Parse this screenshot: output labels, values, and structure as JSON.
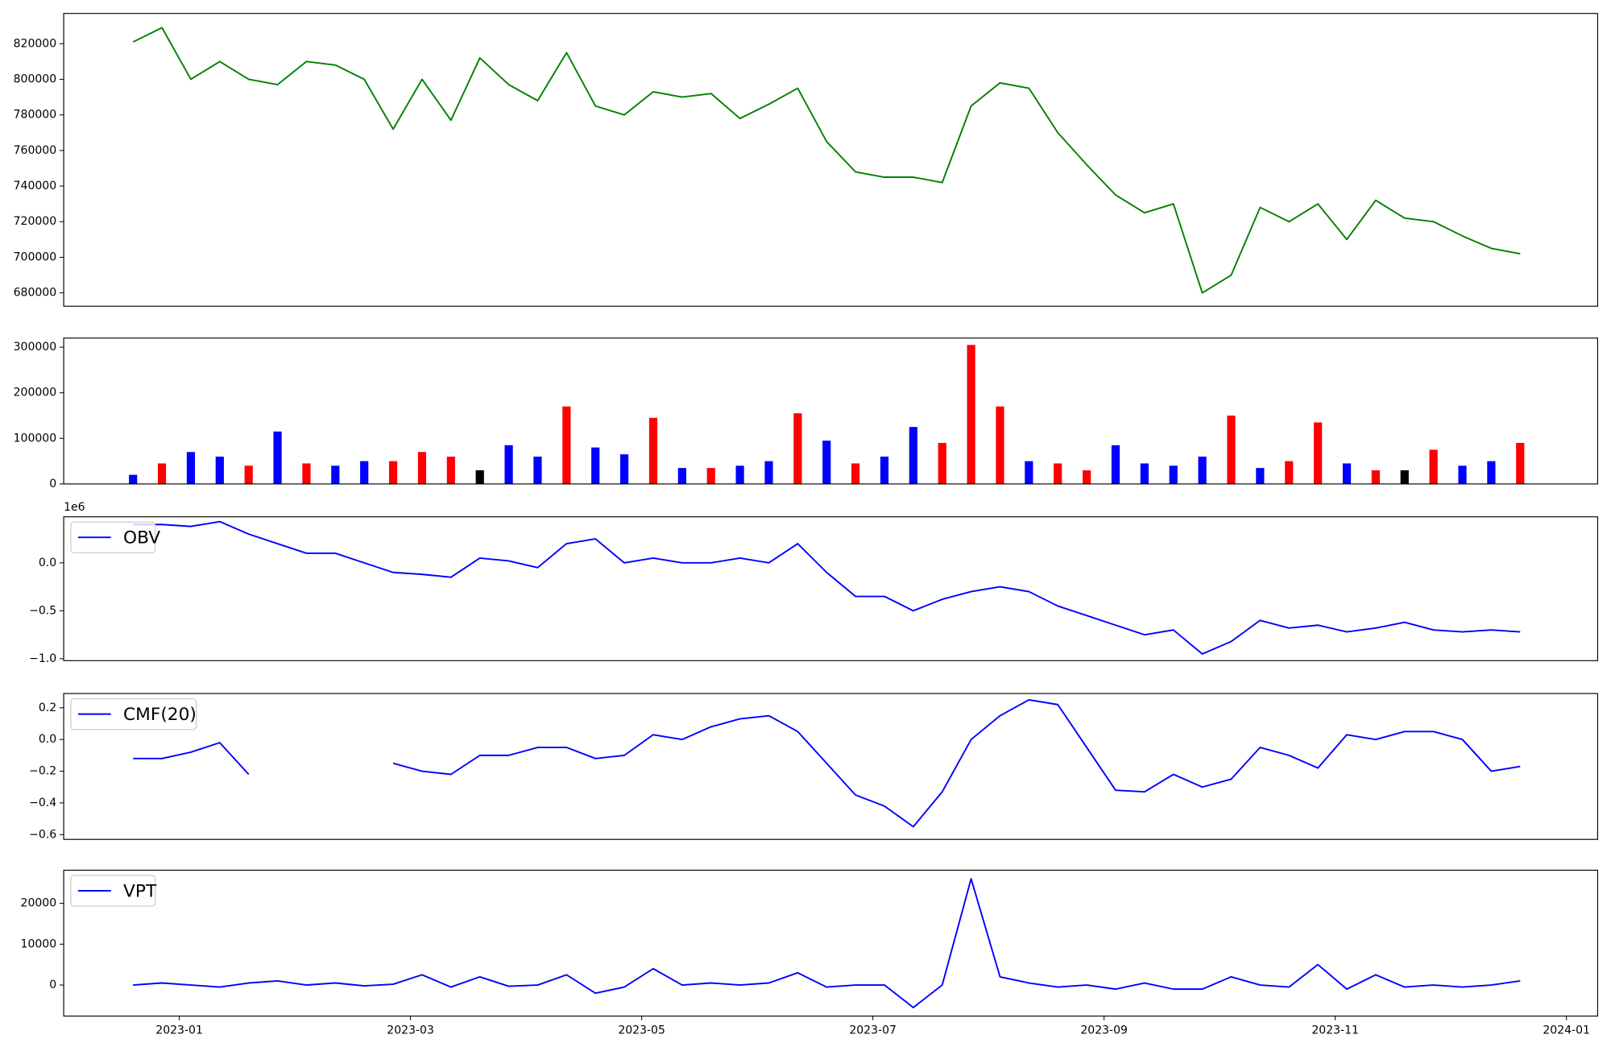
{
  "chart_data": [
    {
      "type": "line",
      "color": "green",
      "x": [
        0.6,
        0.85,
        1.1,
        1.35,
        1.6,
        1.85,
        2.1,
        2.35,
        2.6,
        2.85,
        3.1,
        3.35,
        3.6,
        3.85,
        4.1,
        4.35,
        4.6,
        4.85,
        5.1,
        5.35,
        5.6,
        5.85,
        6.1,
        6.35,
        6.6,
        6.85,
        7.1,
        7.35,
        7.6,
        7.85,
        8.1,
        8.35,
        8.6,
        8.85,
        9.1,
        9.35,
        9.6,
        9.85,
        10.1,
        10.35,
        10.6,
        10.85,
        11.1,
        11.35,
        11.6,
        11.85,
        12.1,
        12.35,
        12.6
      ],
      "values": [
        821000,
        829000,
        800000,
        810000,
        800000,
        797000,
        810000,
        808000,
        800000,
        772000,
        800000,
        777000,
        812000,
        797000,
        788000,
        815000,
        785000,
        780000,
        793000,
        790000,
        792000,
        778000,
        786000,
        795000,
        765000,
        748000,
        745000,
        745000,
        742000,
        785000,
        798000,
        795000,
        770000,
        752000,
        735000,
        725000,
        730000,
        680000,
        690000,
        728000,
        720000,
        730000,
        710000,
        732000,
        722000,
        720000,
        712000,
        705000,
        702000
      ],
      "xlim": [
        0,
        13.27
      ],
      "ylim": [
        672500,
        837000
      ],
      "yticks": [
        680000,
        700000,
        720000,
        740000,
        760000,
        780000,
        800000,
        820000
      ]
    },
    {
      "type": "bar",
      "x": [
        0.6,
        0.85,
        1.1,
        1.35,
        1.6,
        1.85,
        2.1,
        2.35,
        2.6,
        2.85,
        3.1,
        3.35,
        3.6,
        3.85,
        4.1,
        4.35,
        4.6,
        4.85,
        5.1,
        5.35,
        5.6,
        5.85,
        6.1,
        6.35,
        6.6,
        6.85,
        7.1,
        7.35,
        7.6,
        7.85,
        8.1,
        8.35,
        8.6,
        8.85,
        9.1,
        9.35,
        9.6,
        9.85,
        10.1,
        10.35,
        10.6,
        10.85,
        11.1,
        11.35,
        11.6,
        11.85,
        12.1,
        12.35,
        12.6
      ],
      "values": [
        20000,
        45000,
        70000,
        60000,
        40000,
        115000,
        45000,
        40000,
        50000,
        50000,
        70000,
        60000,
        30000,
        85000,
        60000,
        170000,
        80000,
        65000,
        145000,
        35000,
        35000,
        40000,
        50000,
        155000,
        95000,
        45000,
        60000,
        125000,
        90000,
        305000,
        170000,
        50000,
        45000,
        30000,
        85000,
        45000,
        40000,
        60000,
        150000,
        35000,
        50000,
        135000,
        45000,
        30000,
        30000,
        75000,
        40000,
        50000,
        90000
      ],
      "colors": [
        "blue",
        "red",
        "blue",
        "blue",
        "red",
        "blue",
        "red",
        "blue",
        "blue",
        "red",
        "red",
        "red",
        "black",
        "blue",
        "blue",
        "red",
        "blue",
        "blue",
        "red",
        "blue",
        "red",
        "blue",
        "blue",
        "red",
        "blue",
        "red",
        "blue",
        "blue",
        "red",
        "red",
        "red",
        "blue",
        "red",
        "red",
        "blue",
        "blue",
        "blue",
        "blue",
        "red",
        "blue",
        "red",
        "red",
        "blue",
        "red",
        "black",
        "red",
        "blue",
        "blue",
        "red"
      ],
      "xlim": [
        0,
        13.27
      ],
      "ylim": [
        0,
        320000
      ],
      "yticks": [
        0,
        100000,
        200000,
        300000
      ]
    },
    {
      "type": "line",
      "legend": "upper left",
      "offset_label": "1e6",
      "x": [
        0.6,
        0.85,
        1.1,
        1.35,
        1.6,
        1.85,
        2.1,
        2.35,
        2.6,
        2.85,
        3.1,
        3.35,
        3.6,
        3.85,
        4.1,
        4.35,
        4.6,
        4.85,
        5.1,
        5.35,
        5.6,
        5.85,
        6.1,
        6.35,
        6.6,
        6.85,
        7.1,
        7.35,
        7.6,
        7.85,
        8.1,
        8.35,
        8.6,
        8.85,
        9.1,
        9.35,
        9.6,
        9.85,
        10.1,
        10.35,
        10.6,
        10.85,
        11.1,
        11.35,
        11.6,
        11.85,
        12.1,
        12.35,
        12.6
      ],
      "series": [
        {
          "name": "OBV",
          "color": "blue",
          "values": [
            0.4,
            0.4,
            0.38,
            0.43,
            0.3,
            0.2,
            0.1,
            0.1,
            0.0,
            -0.1,
            -0.12,
            -0.15,
            0.05,
            0.02,
            -0.05,
            0.2,
            0.25,
            0.0,
            0.05,
            0.0,
            0.0,
            0.05,
            0.0,
            0.2,
            -0.1,
            -0.35,
            -0.35,
            -0.5,
            -0.38,
            -0.3,
            -0.25,
            -0.3,
            -0.45,
            -0.55,
            -0.65,
            -0.75,
            -0.7,
            -0.95,
            -0.82,
            -0.6,
            -0.68,
            -0.65,
            -0.72,
            -0.68,
            -0.62,
            -0.7,
            -0.72,
            -0.7,
            -0.72
          ]
        }
      ],
      "xlim": [
        0,
        13.27
      ],
      "ylim": [
        -1.02,
        0.48
      ],
      "yticks": [
        {
          "value": -1,
          "label": "−1.0"
        },
        {
          "value": -0.5,
          "label": "−0.5"
        },
        {
          "value": 0,
          "label": "0.0"
        }
      ]
    },
    {
      "type": "line",
      "legend": "upper left",
      "x": [
        0.6,
        0.85,
        1.1,
        1.35,
        1.6,
        1.85,
        2.1,
        2.35,
        2.6,
        2.85,
        3.1,
        3.35,
        3.6,
        3.85,
        4.1,
        4.35,
        4.6,
        4.85,
        5.1,
        5.35,
        5.6,
        5.85,
        6.1,
        6.35,
        6.6,
        6.85,
        7.1,
        7.35,
        7.6,
        7.85,
        8.1,
        8.35,
        8.6,
        8.85,
        9.1,
        9.35,
        9.6,
        9.85,
        10.1,
        10.35,
        10.6,
        10.85,
        11.1,
        11.35,
        11.6,
        11.85,
        12.1,
        12.35,
        12.6
      ],
      "series": [
        {
          "name": "CMF(20)",
          "color": "blue",
          "values": [
            -0.12,
            -0.12,
            -0.08,
            -0.02,
            -0.22,
            null,
            null,
            null,
            null,
            -0.15,
            -0.2,
            -0.22,
            -0.1,
            -0.1,
            -0.05,
            -0.05,
            -0.12,
            -0.1,
            0.03,
            0.0,
            0.08,
            0.13,
            0.15,
            0.05,
            -0.15,
            -0.35,
            -0.42,
            -0.55,
            -0.33,
            0.0,
            0.15,
            0.25,
            0.22,
            -0.05,
            -0.32,
            -0.33,
            -0.22,
            -0.3,
            -0.25,
            -0.05,
            -0.1,
            -0.18,
            0.03,
            0.0,
            0.05,
            0.05,
            0.0,
            -0.2,
            -0.17
          ]
        }
      ],
      "xlim": [
        0,
        13.27
      ],
      "ylim": [
        -0.63,
        0.29
      ],
      "yticks": [
        {
          "value": -0.6,
          "label": "−0.6"
        },
        {
          "value": -0.4,
          "label": "−0.4"
        },
        {
          "value": -0.2,
          "label": "−0.2"
        },
        {
          "value": 0,
          "label": "0.0"
        },
        0.2
      ]
    },
    {
      "type": "line",
      "legend": "upper left",
      "x": [
        0.6,
        0.85,
        1.1,
        1.35,
        1.6,
        1.85,
        2.1,
        2.35,
        2.6,
        2.85,
        3.1,
        3.35,
        3.6,
        3.85,
        4.1,
        4.35,
        4.6,
        4.85,
        5.1,
        5.35,
        5.6,
        5.85,
        6.1,
        6.35,
        6.6,
        6.85,
        7.1,
        7.35,
        7.6,
        7.85,
        8.1,
        8.35,
        8.6,
        8.85,
        9.1,
        9.35,
        9.6,
        9.85,
        10.1,
        10.35,
        10.6,
        10.85,
        11.1,
        11.35,
        11.6,
        11.85,
        12.1,
        12.35,
        12.6
      ],
      "series": [
        {
          "name": "VPT",
          "color": "blue",
          "values": [
            0,
            500,
            0,
            -500,
            500,
            1000,
            0,
            500,
            -200,
            200,
            2500,
            -500,
            2000,
            -300,
            0,
            2500,
            -2000,
            -500,
            4000,
            0,
            500,
            0,
            500,
            3000,
            -500,
            0,
            0,
            -5500,
            0,
            26000,
            2000,
            500,
            -500,
            0,
            -1000,
            500,
            -1000,
            -1000,
            2000,
            0,
            -500,
            5000,
            -1000,
            2500,
            -500,
            0,
            -500,
            0,
            1000
          ]
        }
      ],
      "xlim": [
        0,
        13.27
      ],
      "ylim": [
        -7600,
        28100
      ],
      "yticks": [
        0,
        10000,
        20000
      ],
      "xticks": [
        {
          "value": 1,
          "label": "2023-01"
        },
        {
          "value": 3,
          "label": "2023-03"
        },
        {
          "value": 5,
          "label": "2023-05"
        },
        {
          "value": 7,
          "label": "2023-07"
        },
        {
          "value": 9,
          "label": "2023-09"
        },
        {
          "value": 11,
          "label": "2023-11"
        },
        {
          "value": 13,
          "label": "2024-01"
        }
      ]
    }
  ]
}
